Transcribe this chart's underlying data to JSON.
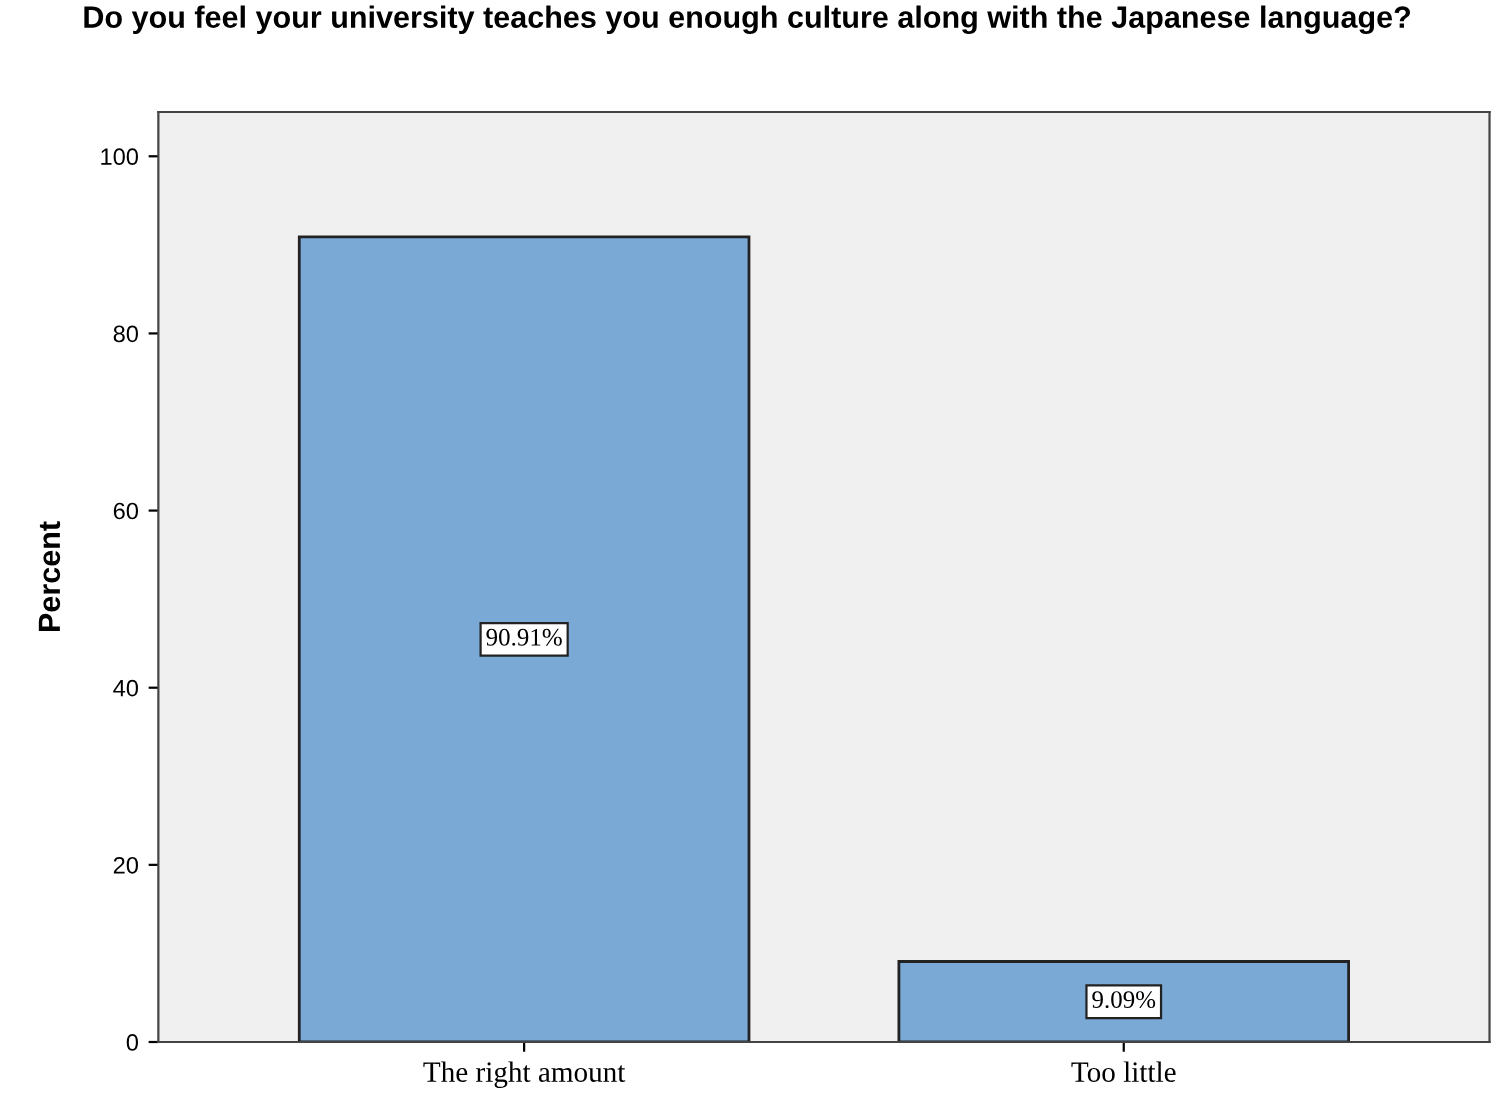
{
  "chart_data": {
    "type": "bar",
    "title": "Do you feel your university teaches you enough culture along with the Japanese language?",
    "ylabel": "Percent",
    "categories": [
      "The right amount",
      "Too little"
    ],
    "values": [
      90.91,
      9.09
    ],
    "value_labels": [
      "90.91%",
      "9.09%"
    ],
    "color": "#7aa9d6",
    "ylim": [
      0,
      105
    ],
    "yticks": [
      0,
      20,
      40,
      60,
      80,
      100
    ],
    "grid": false,
    "legend": false
  }
}
